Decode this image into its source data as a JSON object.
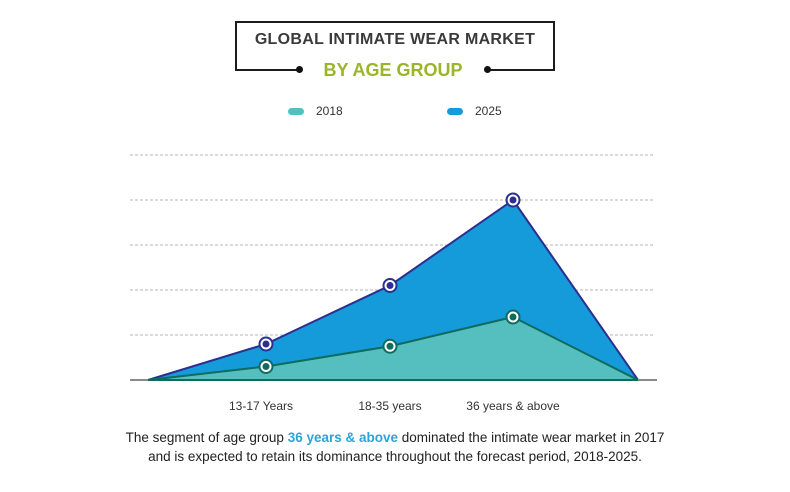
{
  "chart_data": {
    "type": "area",
    "title": "GLOBAL INTIMATE WEAR MARKET",
    "subtitle": "BY AGE GROUP",
    "categories": [
      "13-17 Years",
      "18-35 years",
      "36 years & above"
    ],
    "series": [
      {
        "name": "2018",
        "color": "#55bfc0",
        "line_color": "#0e6b5e",
        "values": [
          0.3,
          0.75,
          1.4
        ]
      },
      {
        "name": "2025",
        "color": "#159bd9",
        "line_color": "#2b2f8f",
        "values": [
          0.8,
          2.1,
          4.0
        ]
      }
    ],
    "ylim": [
      0,
      5
    ],
    "y_gridlines": 5,
    "grid": true,
    "xlabel": "",
    "ylabel": "",
    "legend_position": "top-center",
    "y_axis_units": "relative (no labels shown)"
  },
  "caption": {
    "before": "The segment of age group ",
    "highlight": "36 years & above",
    "after_line1": " dominated the intimate wear market in 2017",
    "line2": "and is expected to retain its dominance throughout the forecast period, 2018-2025."
  },
  "colors": {
    "title": "#3a3a3a",
    "subtitle": "#9ab52c",
    "highlight": "#2da3d8",
    "grid": "#b5b5b5",
    "axis": "#8a8a8a"
  }
}
